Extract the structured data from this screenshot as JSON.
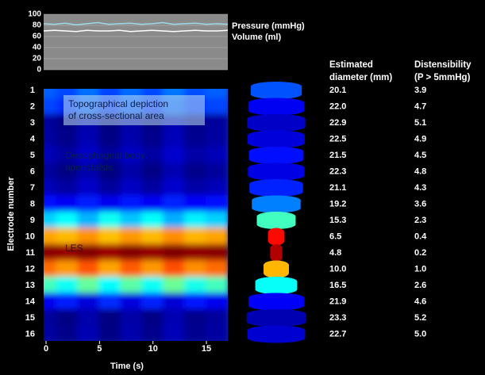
{
  "chart_data": [
    {
      "type": "line",
      "x": [
        0,
        1,
        2,
        3,
        4,
        5,
        6,
        7,
        8,
        9,
        10,
        11,
        12,
        13,
        14,
        15,
        16,
        17
      ],
      "series": [
        {
          "name": "Pressure (mmHg)",
          "color": "#9fd8e8",
          "values": [
            83,
            82,
            84,
            81,
            83,
            85,
            82,
            83,
            84,
            82,
            83,
            85,
            82,
            83,
            84,
            82,
            83,
            82
          ]
        },
        {
          "name": "Volume (ml)",
          "color": "#ffffff",
          "values": [
            70,
            71,
            70,
            69,
            71,
            70,
            70,
            71,
            69,
            70,
            71,
            70,
            69,
            70,
            71,
            70,
            70,
            71
          ]
        }
      ],
      "xlim": [
        0,
        17
      ],
      "ylim": [
        0,
        100
      ],
      "yticks": [
        0,
        20,
        40,
        60,
        80,
        100
      ],
      "grid": true
    },
    {
      "type": "heatmap",
      "xlabel": "Time (s)",
      "ylabel": "Electrode number",
      "annotations": [
        [
          "Topographical depiction",
          "of cross-sectional area"
        ],
        [
          "Oesophageal body",
          "aperistalsis"
        ],
        [
          "LES"
        ]
      ],
      "categories": [
        "1",
        "2",
        "3",
        "4",
        "5",
        "6",
        "7",
        "8",
        "9",
        "10",
        "11",
        "12",
        "13",
        "14",
        "15",
        "16"
      ],
      "x": [
        0,
        2,
        4,
        6,
        8,
        10,
        12,
        14,
        16
      ],
      "z": [
        [
          19.0,
          19.4,
          18.7,
          19.5,
          18.8,
          19.4,
          18.6,
          19.3,
          19.0
        ],
        [
          19.5,
          19.9,
          19.2,
          20.0,
          19.3,
          19.9,
          19.1,
          19.8,
          19.5
        ],
        [
          22.5,
          22.9,
          22.2,
          23.0,
          22.3,
          22.9,
          22.1,
          22.8,
          22.5
        ],
        [
          22.4,
          22.8,
          22.1,
          22.9,
          22.2,
          22.8,
          22.0,
          22.7,
          22.4
        ],
        [
          22.0,
          22.4,
          21.7,
          22.5,
          21.8,
          22.4,
          21.6,
          22.3,
          22.0
        ],
        [
          22.5,
          22.9,
          22.2,
          23.0,
          22.3,
          22.9,
          22.1,
          22.8,
          22.5
        ],
        [
          22.0,
          22.4,
          21.7,
          22.5,
          21.8,
          22.4,
          21.6,
          22.3,
          22.0
        ],
        [
          20.5,
          20.9,
          20.2,
          21.0,
          20.3,
          20.9,
          20.1,
          20.8,
          20.5
        ],
        [
          17.0,
          16.2,
          17.5,
          16.0,
          17.2,
          16.1,
          17.6,
          16.4,
          17.0
        ],
        [
          10.0,
          10.4,
          9.7,
          10.5,
          9.8,
          10.4,
          9.6,
          10.3,
          10.0
        ],
        [
          5.0,
          5.2,
          4.9,
          5.3,
          4.9,
          5.2,
          4.8,
          5.1,
          5.0
        ],
        [
          9.0,
          9.8,
          8.6,
          10.0,
          8.7,
          9.8,
          8.5,
          9.6,
          9.0
        ],
        [
          15.0,
          16.0,
          14.4,
          16.2,
          14.6,
          16.0,
          14.3,
          15.8,
          15.0
        ],
        [
          21.0,
          20.2,
          21.4,
          20.0,
          21.3,
          20.1,
          21.5,
          20.3,
          21.0
        ],
        [
          22.5,
          22.9,
          22.2,
          23.0,
          22.3,
          22.9,
          22.1,
          22.8,
          22.5
        ],
        [
          22.4,
          22.8,
          22.1,
          22.9,
          22.2,
          22.8,
          22.0,
          22.7,
          22.4
        ]
      ],
      "xlim": [
        0,
        17
      ],
      "xticks": [
        0,
        5,
        10,
        15
      ]
    }
  ],
  "table": {
    "headers": [
      [
        "Estimated",
        "diameter (mm)"
      ],
      [
        "Distensibility",
        "(P > 5mmHg)"
      ]
    ],
    "rows": [
      [
        "20.1",
        "3.9"
      ],
      [
        "22.0",
        "4.7"
      ],
      [
        "22.9",
        "5.1"
      ],
      [
        "22.5",
        "4.9"
      ],
      [
        "21.5",
        "4.5"
      ],
      [
        "22.3",
        "4.8"
      ],
      [
        "21.1",
        "4.3"
      ],
      [
        "19.2",
        "3.6"
      ],
      [
        "15.3",
        "2.3"
      ],
      [
        "6.5",
        "0.4"
      ],
      [
        "4.8",
        "0.2"
      ],
      [
        "10.0",
        "1.0"
      ],
      [
        "16.5",
        "2.6"
      ],
      [
        "21.9",
        "4.6"
      ],
      [
        "23.3",
        "5.2"
      ],
      [
        "22.7",
        "5.0"
      ]
    ]
  }
}
